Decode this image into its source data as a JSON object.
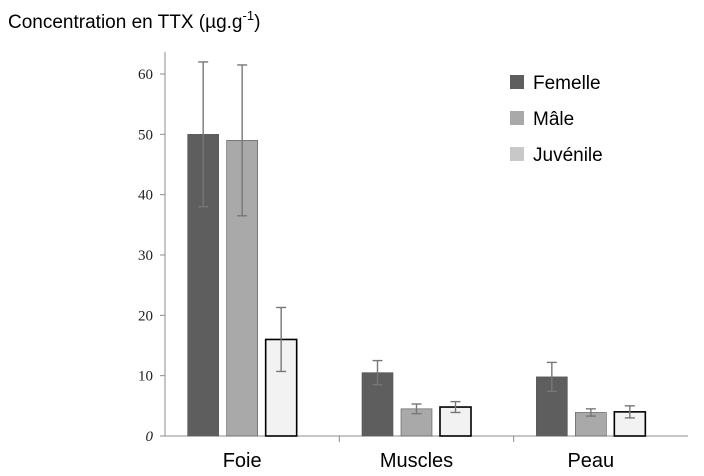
{
  "chart_data": {
    "type": "bar",
    "ylabel_main": "Concentration en TTX (µg.g",
    "ylabel_sup": "-1",
    "ylabel_close": ")",
    "xlabel": "",
    "ylim": [
      0,
      65
    ],
    "yticks": [
      "0",
      "10",
      "20",
      "30",
      "40",
      "50",
      "60"
    ],
    "categories": [
      "Foie",
      "Muscles",
      "Peau"
    ],
    "series": [
      {
        "name": "Femelle",
        "color": "#5e5e5e",
        "values": [
          50,
          10.5,
          9.8
        ],
        "errors": [
          12,
          2,
          2.4
        ]
      },
      {
        "name": "Mâle",
        "color": "#a9a9a9",
        "values": [
          49,
          4.5,
          3.9
        ],
        "errors": [
          12.5,
          0.8,
          0.6
        ]
      },
      {
        "name": "Juvénile",
        "color": "#f2f2f2",
        "values": [
          16,
          4.8,
          4
        ],
        "errors": [
          5.3,
          0.9,
          1
        ]
      }
    ],
    "legend_position": "top-right",
    "grid": false
  }
}
